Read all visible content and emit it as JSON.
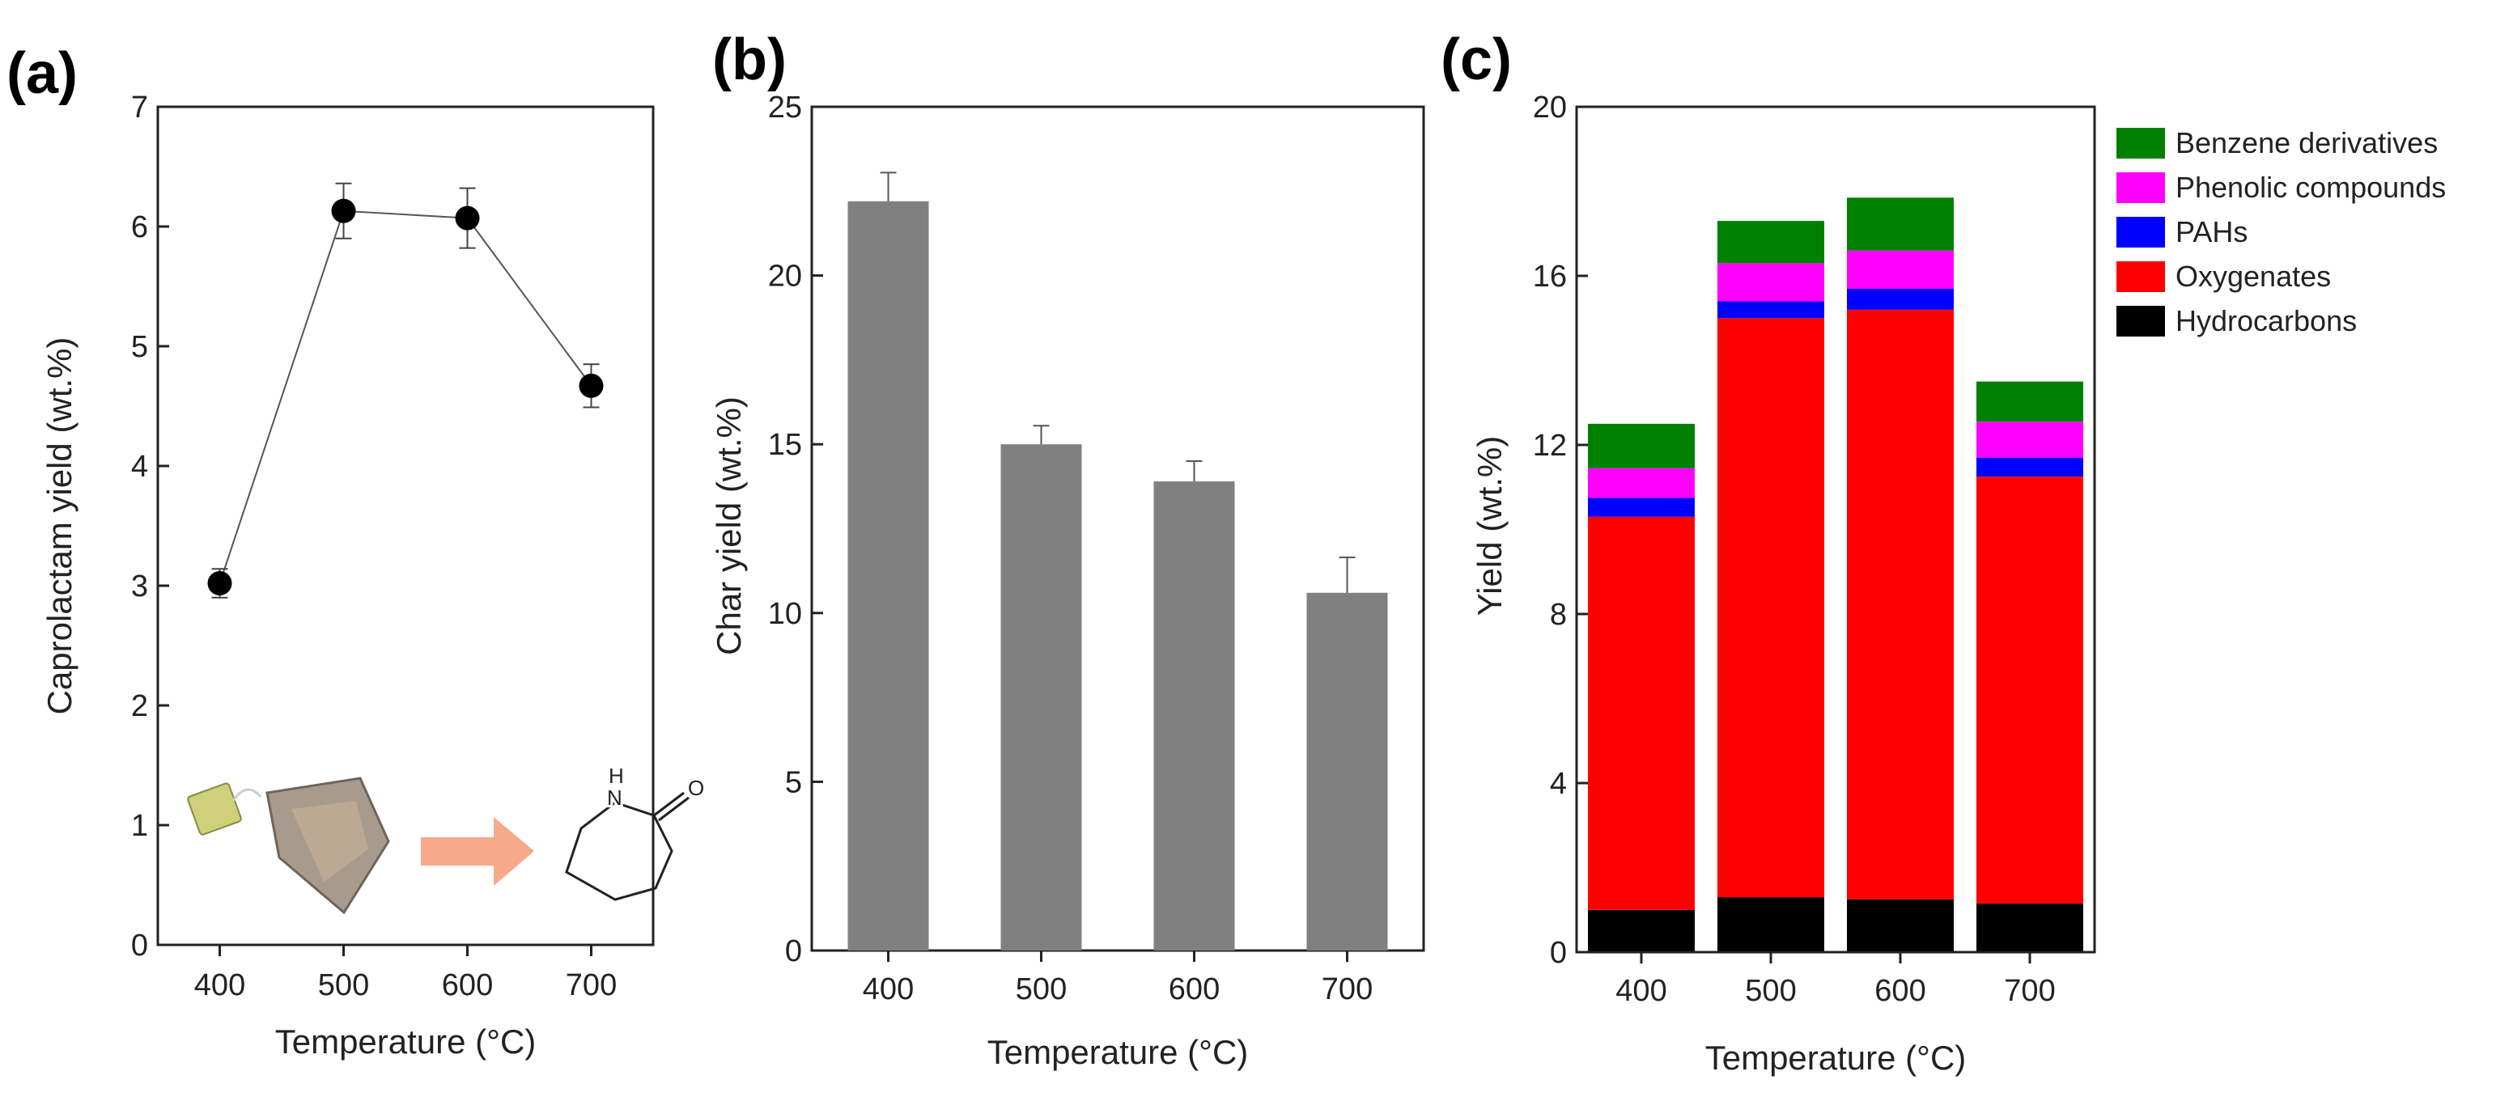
{
  "chart_data": [
    {
      "panel": "(a)",
      "type": "line",
      "categories": [
        "400",
        "500",
        "600",
        "700"
      ],
      "x": [
        400,
        500,
        600,
        700
      ],
      "values": [
        3.02,
        6.13,
        6.07,
        4.67
      ],
      "errors": [
        0.12,
        0.23,
        0.25,
        0.18
      ],
      "xlabel": "Temperature (°C)",
      "ylabel": "Caprolactam yield (wt.%)",
      "xlim": [
        350,
        750
      ],
      "ylim": [
        0,
        7
      ],
      "yticks": [
        0,
        1,
        2,
        3,
        4,
        5,
        6,
        7
      ],
      "color": "#000000",
      "inset": "tea bag → caprolactam structure",
      "inset_atoms": {
        "nitrogen": "N",
        "hydrogen": "H",
        "oxygen": "O"
      }
    },
    {
      "panel": "(b)",
      "type": "bar",
      "categories": [
        "400",
        "500",
        "600",
        "700"
      ],
      "values": [
        22.2,
        15.0,
        13.9,
        10.6
      ],
      "errors": [
        0.85,
        0.55,
        0.6,
        1.05
      ],
      "xlabel": "Temperature (°C)",
      "ylabel": "Char yield (wt.%)",
      "ylim": [
        0,
        25
      ],
      "yticks": [
        0,
        5,
        10,
        15,
        20,
        25
      ],
      "color": "#808080"
    },
    {
      "panel": "(c)",
      "type": "bar",
      "stacked": true,
      "categories": [
        "400",
        "500",
        "600",
        "700"
      ],
      "series": [
        {
          "name": "Hydrocarbons",
          "color": "#000000",
          "values": [
            1.0,
            1.3,
            1.25,
            1.15
          ]
        },
        {
          "name": "Oxygenates",
          "color": "#ff0000",
          "values": [
            9.3,
            13.7,
            13.95,
            10.1
          ]
        },
        {
          "name": "PAHs",
          "color": "#0000ff",
          "values": [
            0.45,
            0.4,
            0.5,
            0.45
          ]
        },
        {
          "name": "Phenolic compounds",
          "color": "#ff00ff",
          "values": [
            0.7,
            0.9,
            0.9,
            0.85
          ]
        },
        {
          "name": "Benzene derivatives",
          "color": "#008000",
          "values": [
            1.05,
            1.0,
            1.25,
            0.95
          ]
        }
      ],
      "legend_order": [
        "Benzene derivatives",
        "Phenolic compounds",
        "PAHs",
        "Oxygenates",
        "Hydrocarbons"
      ],
      "legend_position": "top-right",
      "xlabel": "Temperature (°C)",
      "ylabel": "Yield (wt.%)",
      "ylim": [
        0,
        20
      ],
      "yticks": [
        0,
        4,
        8,
        12,
        16,
        20
      ]
    }
  ]
}
